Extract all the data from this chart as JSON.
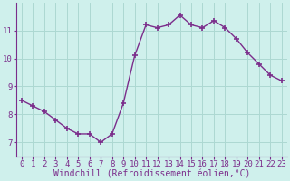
{
  "x": [
    0,
    1,
    2,
    3,
    4,
    5,
    6,
    7,
    8,
    9,
    10,
    11,
    12,
    13,
    14,
    15,
    16,
    17,
    18,
    19,
    20,
    21,
    22,
    23
  ],
  "y": [
    8.5,
    8.3,
    8.1,
    7.8,
    7.5,
    7.3,
    7.3,
    7.0,
    7.3,
    8.4,
    10.1,
    11.2,
    11.1,
    11.2,
    11.55,
    11.2,
    11.1,
    11.35,
    11.1,
    10.7,
    10.2,
    9.8,
    9.4,
    9.2
  ],
  "line_color": "#7b2d8b",
  "marker": "+",
  "marker_size": 4,
  "marker_lw": 1.2,
  "line_width": 1.0,
  "line_style": "-",
  "bg_color": "#cff0ec",
  "grid_color": "#acd8d2",
  "xlabel": "Windchill (Refroidissement éolien,°C)",
  "xlabel_color": "#7b2d8b",
  "tick_color": "#7b2d8b",
  "axis_color": "#7b2d8b",
  "ylim": [
    6.5,
    12.0
  ],
  "xlim": [
    -0.5,
    23.5
  ],
  "yticks": [
    7,
    8,
    9,
    10,
    11
  ],
  "xticks": [
    0,
    1,
    2,
    3,
    4,
    5,
    6,
    7,
    8,
    9,
    10,
    11,
    12,
    13,
    14,
    15,
    16,
    17,
    18,
    19,
    20,
    21,
    22,
    23
  ],
  "font_size": 6.5,
  "xlabel_fontsize": 7.0
}
